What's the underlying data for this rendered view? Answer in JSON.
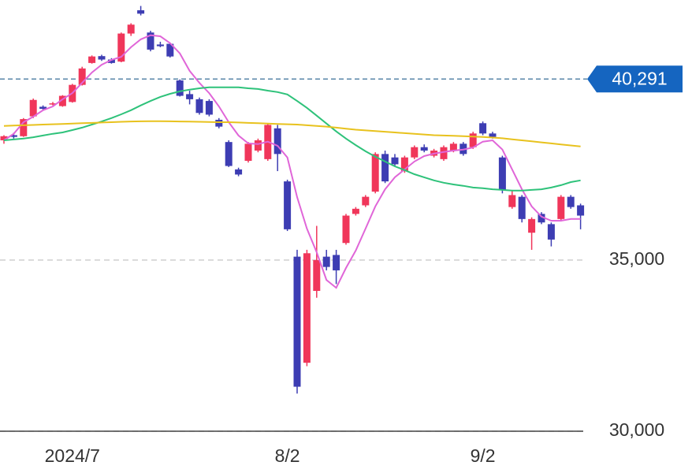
{
  "chart_data": {
    "type": "candlestick",
    "categories": [
      null,
      null,
      null,
      null,
      null,
      null,
      null,
      "2024/7",
      null,
      null,
      null,
      null,
      null,
      null,
      null,
      null,
      null,
      null,
      null,
      null,
      null,
      null,
      null,
      null,
      null,
      null,
      null,
      null,
      null,
      "8/2",
      null,
      null,
      null,
      null,
      null,
      null,
      null,
      null,
      null,
      null,
      null,
      null,
      null,
      null,
      null,
      null,
      null,
      null,
      null,
      "9/2",
      null,
      null,
      null,
      null,
      null,
      null,
      null,
      null,
      null,
      null
    ],
    "open": [
      38500,
      38650,
      38620,
      39200,
      39480,
      39560,
      39500,
      39620,
      40120,
      40760,
      40960,
      40860,
      40800,
      41620,
      42300,
      41650,
      41300,
      41320,
      40250,
      39850,
      39700,
      39650,
      39100,
      38450,
      37650,
      37900,
      38200,
      37950,
      38850,
      37300,
      35100,
      32000,
      34100,
      35100,
      35150,
      35500,
      36350,
      36600,
      37000,
      38100,
      38000,
      37600,
      38000,
      38300,
      38050,
      37950,
      38200,
      38400,
      38300,
      39000,
      38700,
      38000,
      36550,
      36850,
      35800,
      36350,
      36050,
      36200,
      36850,
      36600
    ],
    "high": [
      38650,
      38720,
      39150,
      39720,
      39520,
      39620,
      39820,
      40150,
      40650,
      40980,
      41000,
      40900,
      41650,
      41920,
      42426,
      41700,
      41380,
      41350,
      40280,
      39950,
      39750,
      39700,
      39150,
      38500,
      37700,
      38450,
      38550,
      39000,
      38950,
      37350,
      35300,
      35300,
      36000,
      35300,
      35300,
      36350,
      36550,
      36900,
      38150,
      38200,
      38100,
      38050,
      38350,
      38380,
      38250,
      38350,
      38450,
      38450,
      38750,
      39050,
      38750,
      38050,
      37050,
      36900,
      36250,
      36400,
      36100,
      36900,
      36900,
      36650
    ],
    "low": [
      38400,
      38550,
      38600,
      39150,
      39380,
      39520,
      39480,
      39600,
      40100,
      40740,
      40820,
      40740,
      40780,
      41550,
      42150,
      41100,
      41220,
      40920,
      39780,
      39550,
      39250,
      39200,
      38850,
      37720,
      37450,
      37850,
      38150,
      37900,
      37600,
      35850,
      31100,
      31900,
      33900,
      34700,
      34300,
      35450,
      36300,
      36550,
      36950,
      37250,
      37750,
      37550,
      37950,
      38150,
      38000,
      37900,
      38150,
      38050,
      38250,
      38650,
      38550,
      36950,
      36500,
      36100,
      35300,
      36050,
      35400,
      36150,
      36500,
      35900
    ],
    "close": [
      38620,
      38600,
      39120,
      39680,
      39420,
      39580,
      39800,
      40120,
      40600,
      40950,
      40860,
      40760,
      41620,
      41880,
      42200,
      41150,
      41250,
      40950,
      39800,
      39700,
      39300,
      39250,
      38900,
      37750,
      37500,
      38400,
      38500,
      38950,
      38100,
      35900,
      31300,
      35200,
      35000,
      34800,
      34700,
      36300,
      36500,
      36850,
      38100,
      37300,
      37800,
      38000,
      38300,
      38200,
      38200,
      38300,
      38400,
      38100,
      38700,
      38700,
      38600,
      37050,
      36900,
      36200,
      36200,
      36100,
      35600,
      36850,
      36550,
      36300
    ],
    "up_color": "#f0365a",
    "down_color": "#3d3db3",
    "series": [
      {
        "color": "#e066d8",
        "values": [
          38500,
          38690,
          39030,
          39190,
          39380,
          39490,
          39700,
          39880,
          40180,
          40480,
          40710,
          40850,
          40940,
          41220,
          41450,
          41570,
          41540,
          41340,
          41040,
          40530,
          40180,
          39880,
          39490,
          39030,
          38640,
          38410,
          38390,
          38460,
          38340,
          38000,
          36840,
          35920,
          35230,
          34420,
          34190,
          34770,
          35280,
          35920,
          36570,
          37070,
          37420,
          37650,
          37880,
          38040,
          38110,
          38160,
          38200,
          38230,
          38290,
          38460,
          38500,
          38230,
          37650,
          37070,
          36570,
          36270,
          36150,
          36150,
          36200,
          36200
        ]
      },
      {
        "color": "#2ec27a",
        "values": [
          38500,
          38525,
          38550,
          38590,
          38640,
          38690,
          38730,
          38800,
          38870,
          38960,
          39050,
          39150,
          39260,
          39380,
          39520,
          39650,
          39770,
          39860,
          39930,
          39980,
          40020,
          40050,
          40050,
          40050,
          40050,
          40020,
          40000,
          39950,
          39910,
          39840,
          39650,
          39450,
          39220,
          38990,
          38760,
          38550,
          38360,
          38180,
          38020,
          37880,
          37740,
          37630,
          37510,
          37420,
          37330,
          37260,
          37210,
          37170,
          37120,
          37100,
          37070,
          37050,
          37030,
          37030,
          37050,
          37070,
          37120,
          37190,
          37280,
          37330
        ]
      },
      {
        "color": "#e8c21e",
        "values": [
          38920,
          38930,
          38940,
          38950,
          38960,
          38970,
          38980,
          38990,
          39000,
          39010,
          39020,
          39030,
          39040,
          39050,
          39055,
          39060,
          39060,
          39055,
          39050,
          39045,
          39040,
          39035,
          39030,
          39030,
          39020,
          39010,
          39000,
          38990,
          38980,
          38970,
          38960,
          38940,
          38920,
          38900,
          38870,
          38840,
          38810,
          38790,
          38770,
          38750,
          38730,
          38710,
          38690,
          38670,
          38650,
          38640,
          38630,
          38620,
          38610,
          38600,
          38580,
          38560,
          38530,
          38500,
          38470,
          38440,
          38410,
          38380,
          38350,
          38320
        ]
      }
    ],
    "price_line": {
      "value": 40291,
      "label": "40,291",
      "color": "#1565c0"
    },
    "ylim": [
      30000,
      42600
    ],
    "yticks": [
      {
        "value": 30000,
        "label": "30,000"
      },
      {
        "value": 35000,
        "label": "35,000"
      }
    ],
    "grid": true
  }
}
